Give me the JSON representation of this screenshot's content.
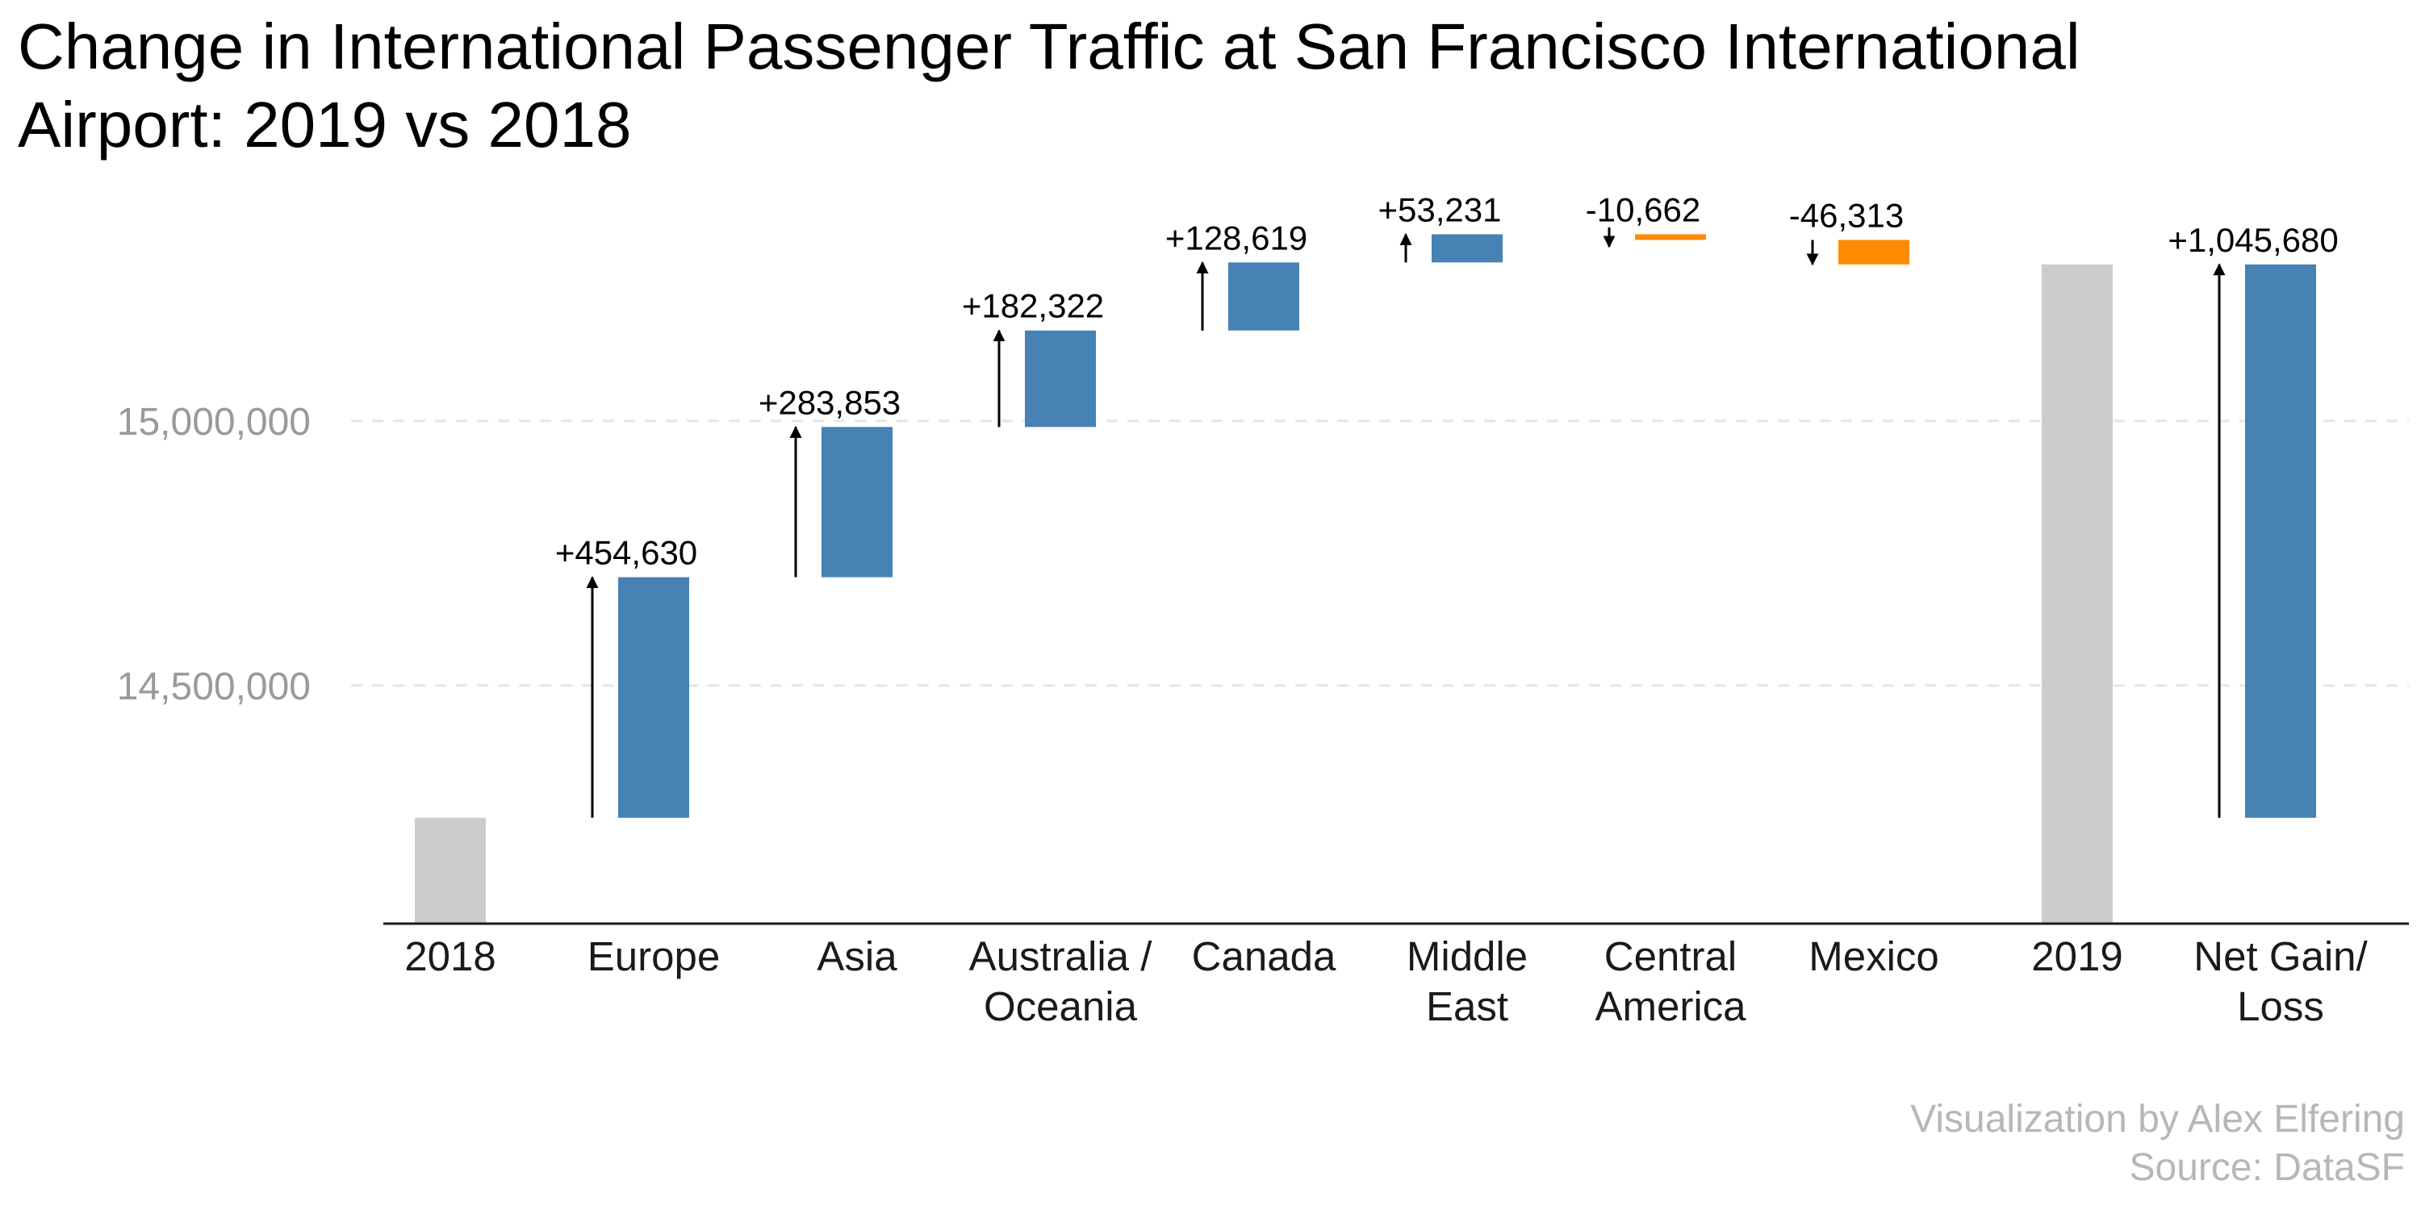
{
  "chart_data": {
    "type": "waterfall",
    "title_lines": [
      "Change in International Passenger Traffic at San Francisco International",
      "Airport: 2019 vs 2018"
    ],
    "categories": [
      [
        "2018"
      ],
      [
        "Europe"
      ],
      [
        "Asia"
      ],
      [
        "Australia /",
        "Oceania"
      ],
      [
        "Canada"
      ],
      [
        "Middle",
        "East"
      ],
      [
        "Central",
        "America"
      ],
      [
        "Mexico"
      ],
      [
        "2019"
      ],
      [
        "Net Gain/",
        "Loss"
      ]
    ],
    "bars": [
      {
        "kind": "total",
        "base": 14250000,
        "value": 14250000,
        "label": ""
      },
      {
        "kind": "delta",
        "base": 14250000,
        "value": 454630,
        "label": "+454,630"
      },
      {
        "kind": "delta",
        "base": 14704630,
        "value": 283853,
        "label": "+283,853"
      },
      {
        "kind": "delta",
        "base": 14988483,
        "value": 182322,
        "label": "+182,322"
      },
      {
        "kind": "delta",
        "base": 15170805,
        "value": 128619,
        "label": "+128,619"
      },
      {
        "kind": "delta",
        "base": 15299424,
        "value": 53231,
        "label": "+53,231"
      },
      {
        "kind": "delta",
        "base": 15352655,
        "value": -10662,
        "label": "-10,662"
      },
      {
        "kind": "delta",
        "base": 15341993,
        "value": -46313,
        "label": "-46,313"
      },
      {
        "kind": "total",
        "base": 15295680,
        "value": 15295680,
        "label": ""
      },
      {
        "kind": "delta",
        "base": 14250000,
        "value": 1045680,
        "label": "+1,045,680"
      }
    ],
    "y_ticks": [
      {
        "value": 14500000,
        "label": "14,500,000"
      },
      {
        "value": 15000000,
        "label": "15,000,000"
      }
    ],
    "ylim": [
      14050000,
      15460000
    ],
    "grid": "horizontal dashed",
    "legend": "none",
    "colors": {
      "increase": "#4682b4",
      "decrease": "#ff8c00",
      "total": "#cccccc",
      "grid": "#e6e6e6",
      "axis": "#1a1a1a"
    },
    "caption_lines": [
      "Visualization by Alex Elfering",
      "Source: DataSF"
    ]
  }
}
